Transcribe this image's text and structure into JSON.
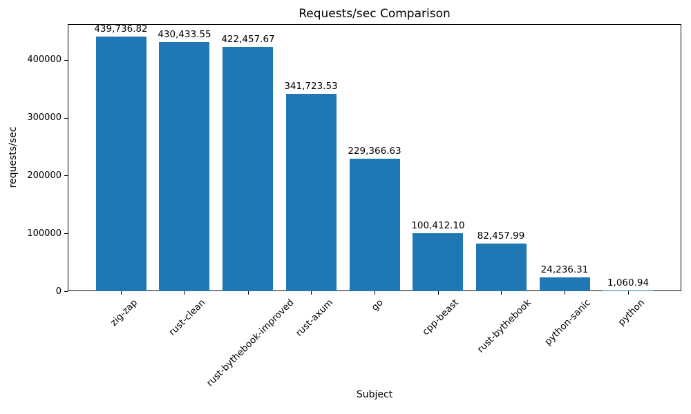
{
  "chart_data": {
    "type": "bar",
    "title": "Requests/sec Comparison",
    "xlabel": "Subject",
    "ylabel": "requests/sec",
    "categories": [
      "zig-zap",
      "rust-clean",
      "rust-bythebook-improved",
      "rust-axum",
      "go",
      "cpp-beast",
      "rust-bythebook",
      "python-sanic",
      "python"
    ],
    "values": [
      439736.82,
      430433.55,
      422457.67,
      341723.53,
      229366.63,
      100412.1,
      82457.99,
      24236.31,
      1060.94
    ],
    "value_labels": [
      "439,736.82",
      "430,433.55",
      "422,457.67",
      "341,723.53",
      "229,366.63",
      "100,412.10",
      "82,457.99",
      "24,236.31",
      "1,060.94"
    ],
    "bar_color": "#1f77b4",
    "text_color": "#000000",
    "ylim": [
      0,
      461724
    ],
    "yticks": [
      0,
      100000,
      200000,
      300000,
      400000
    ],
    "ytick_labels": [
      "0",
      "100000",
      "200000",
      "300000",
      "400000"
    ],
    "x_tick_rotation_deg": 45,
    "grid": false,
    "legend": "none",
    "bar_width_fraction": 0.8
  }
}
